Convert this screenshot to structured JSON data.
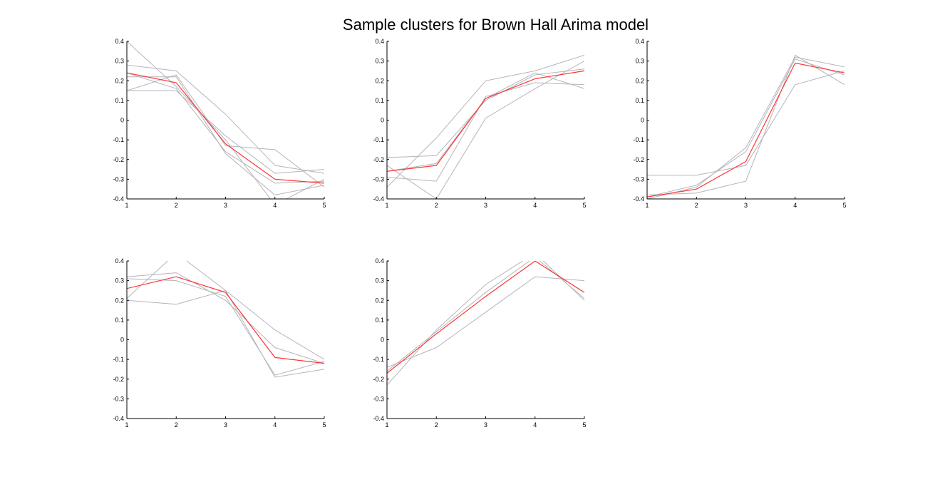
{
  "title": "Sample clusters for Brown Hall Arima model",
  "colors": {
    "mean": "#ff3333",
    "member": "#b4b4bc",
    "axis": "#000000"
  },
  "chart_data": [
    {
      "type": "line",
      "x": [
        1,
        2,
        3,
        4,
        5
      ],
      "xticks": [
        "1",
        "2",
        "3",
        "4",
        "5"
      ],
      "yticks": [
        "0.4",
        "0.3",
        "0.2",
        "0.1",
        "0",
        "-0.1",
        "-0.2",
        "-0.3",
        "-0.4"
      ],
      "xlim": [
        1,
        5
      ],
      "ylim": [
        -0.4,
        0.4
      ],
      "grid": false,
      "mean": [
        0.24,
        0.19,
        -0.12,
        -0.3,
        -0.32
      ],
      "members": [
        [
          0.4,
          0.17,
          -0.1,
          -0.43,
          -0.3
        ],
        [
          0.28,
          0.25,
          0.03,
          -0.23,
          -0.27
        ],
        [
          0.22,
          0.22,
          -0.17,
          -0.38,
          -0.33
        ],
        [
          0.15,
          0.23,
          -0.13,
          -0.15,
          -0.34
        ],
        [
          0.15,
          0.15,
          -0.08,
          -0.27,
          -0.25
        ],
        [
          0.24,
          0.16,
          -0.16,
          -0.32,
          -0.31
        ]
      ]
    },
    {
      "type": "line",
      "x": [
        1,
        2,
        3,
        4,
        5
      ],
      "xticks": [
        "1",
        "2",
        "3",
        "4",
        "5"
      ],
      "yticks": [
        "0.4",
        "0.3",
        "0.2",
        "0.1",
        "0",
        "-0.1",
        "-0.2",
        "-0.3",
        "-0.4"
      ],
      "xlim": [
        1,
        5
      ],
      "ylim": [
        -0.4,
        0.4
      ],
      "grid": false,
      "mean": [
        -0.26,
        -0.23,
        0.11,
        0.21,
        0.25
      ],
      "members": [
        [
          -0.34,
          -0.09,
          0.2,
          0.25,
          0.33
        ],
        [
          -0.29,
          -0.31,
          0.12,
          0.19,
          0.18
        ],
        [
          -0.19,
          -0.18,
          0.1,
          0.23,
          0.26
        ],
        [
          -0.23,
          -0.4,
          0.01,
          0.16,
          0.3
        ],
        [
          -0.26,
          -0.22,
          0.11,
          0.24,
          0.16
        ]
      ]
    },
    {
      "type": "line",
      "x": [
        1,
        2,
        3,
        4,
        5
      ],
      "xticks": [
        "1",
        "2",
        "3",
        "4",
        "5"
      ],
      "yticks": [
        "0.4",
        "0.3",
        "0.2",
        "0.1",
        "0",
        "-0.1",
        "-0.2",
        "-0.3",
        "-0.4"
      ],
      "xlim": [
        1,
        5
      ],
      "ylim": [
        -0.4,
        0.4
      ],
      "grid": false,
      "mean": [
        -0.39,
        -0.35,
        -0.21,
        0.29,
        0.24
      ],
      "members": [
        [
          -0.28,
          -0.28,
          -0.23,
          0.18,
          0.25
        ],
        [
          -0.4,
          -0.34,
          -0.14,
          0.32,
          0.27
        ],
        [
          -0.38,
          -0.37,
          -0.31,
          0.33,
          0.18
        ],
        [
          -0.39,
          -0.33,
          -0.16,
          0.31,
          0.23
        ]
      ]
    },
    {
      "type": "line",
      "x": [
        1,
        2,
        3,
        4,
        5
      ],
      "xticks": [
        "1",
        "2",
        "3",
        "4",
        "5"
      ],
      "yticks": [
        "0.4",
        "0.3",
        "0.2",
        "0.1",
        "0",
        "-0.1",
        "-0.2",
        "-0.3",
        "-0.4"
      ],
      "xlim": [
        1,
        5
      ],
      "ylim": [
        -0.4,
        0.4
      ],
      "grid": false,
      "mean": [
        0.26,
        0.32,
        0.24,
        -0.09,
        -0.12
      ],
      "members": [
        [
          0.21,
          0.44,
          0.25,
          0.05,
          -0.1
        ],
        [
          0.2,
          0.18,
          0.25,
          -0.19,
          -0.15
        ],
        [
          0.31,
          0.3,
          0.22,
          -0.18,
          -0.11
        ],
        [
          0.32,
          0.34,
          0.2,
          -0.04,
          -0.12
        ]
      ]
    },
    {
      "type": "line",
      "x": [
        1,
        2,
        3,
        4,
        5
      ],
      "xticks": [
        "1",
        "2",
        "3",
        "4",
        "5"
      ],
      "yticks": [
        "0.4",
        "0.3",
        "0.2",
        "0.1",
        "0",
        "-0.1",
        "-0.2",
        "-0.3",
        "-0.4"
      ],
      "xlim": [
        1,
        5
      ],
      "ylim": [
        -0.4,
        0.4
      ],
      "grid": false,
      "mean": [
        -0.17,
        0.03,
        0.22,
        0.4,
        0.24
      ],
      "members": [
        [
          -0.23,
          0.05,
          0.28,
          0.44,
          0.2
        ],
        [
          -0.14,
          -0.04,
          0.14,
          0.32,
          0.3
        ],
        [
          -0.16,
          0.04,
          0.24,
          0.42,
          0.21
        ]
      ]
    }
  ]
}
